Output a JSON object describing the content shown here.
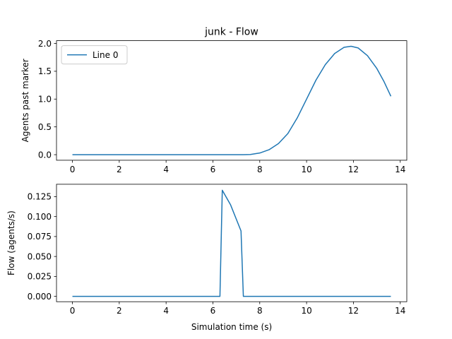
{
  "chart_data": [
    {
      "type": "line",
      "title": "junk - Flow",
      "xlabel": "",
      "ylabel": "Agents past marker",
      "xlim": [
        -0.68,
        14.28
      ],
      "ylim": [
        -0.1,
        2.05
      ],
      "xticks": [
        0,
        2,
        4,
        6,
        8,
        10,
        12,
        14
      ],
      "xtick_labels": [
        "0",
        "2",
        "4",
        "6",
        "8",
        "10",
        "12",
        "14"
      ],
      "yticks": [
        0.0,
        0.5,
        1.0,
        1.5,
        2.0
      ],
      "ytick_labels": [
        "0.0",
        "0.5",
        "1.0",
        "1.5",
        "2.0"
      ],
      "legend": {
        "position": "top-left",
        "entries": [
          "Line 0"
        ]
      },
      "grid": false,
      "series": [
        {
          "name": "Line 0",
          "color": "#1f77b4",
          "x": [
            0,
            1,
            2,
            3,
            4,
            5,
            6,
            6.4,
            7,
            7.3,
            7.6,
            8,
            8.4,
            8.8,
            9.2,
            9.6,
            10,
            10.4,
            10.8,
            11.2,
            11.6,
            11.9,
            12.2,
            12.6,
            13,
            13.3,
            13.6
          ],
          "y": [
            0,
            0,
            0,
            0,
            0,
            0,
            0,
            0,
            0,
            0,
            0.004,
            0.03,
            0.09,
            0.2,
            0.38,
            0.66,
            1.0,
            1.34,
            1.62,
            1.82,
            1.93,
            1.95,
            1.92,
            1.78,
            1.55,
            1.32,
            1.05
          ]
        }
      ]
    },
    {
      "type": "line",
      "title": "",
      "xlabel": "Simulation time (s)",
      "ylabel": "Flow (agents/s)",
      "xlim": [
        -0.68,
        14.28
      ],
      "ylim": [
        -0.0067,
        0.1405
      ],
      "xticks": [
        0,
        2,
        4,
        6,
        8,
        10,
        12,
        14
      ],
      "xtick_labels": [
        "0",
        "2",
        "4",
        "6",
        "8",
        "10",
        "12",
        "14"
      ],
      "yticks": [
        0.0,
        0.025,
        0.05,
        0.075,
        0.1,
        0.125
      ],
      "ytick_labels": [
        "0.000",
        "0.025",
        "0.050",
        "0.075",
        "0.100",
        "0.125"
      ],
      "grid": false,
      "series": [
        {
          "color": "#1f77b4",
          "x": [
            0,
            6.3,
            6.4,
            6.75,
            7.2,
            7.3,
            13.6
          ],
          "y": [
            0,
            0,
            0.133,
            0.115,
            0.082,
            0,
            0
          ]
        }
      ]
    }
  ]
}
